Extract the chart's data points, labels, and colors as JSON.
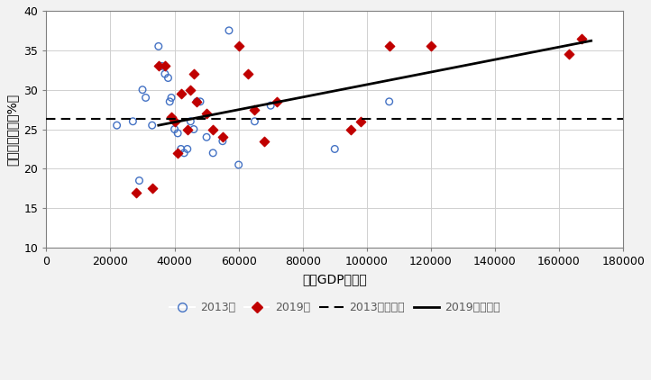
{
  "x2013": [
    22000,
    27000,
    29000,
    30000,
    31000,
    33000,
    35000,
    36000,
    37000,
    38000,
    38500,
    39000,
    40000,
    41000,
    42000,
    43000,
    44000,
    45000,
    46000,
    47000,
    48000,
    50000,
    52000,
    55000,
    57000,
    60000,
    65000,
    70000,
    90000,
    107000
  ],
  "y2013": [
    25.5,
    26.0,
    18.5,
    30.0,
    29.0,
    25.5,
    35.5,
    33.0,
    32.0,
    31.5,
    28.5,
    29.0,
    25.0,
    24.5,
    22.5,
    22.0,
    22.5,
    26.0,
    25.0,
    28.5,
    28.5,
    24.0,
    22.0,
    23.5,
    37.5,
    20.5,
    26.0,
    28.0,
    22.5,
    28.5
  ],
  "x2019": [
    28000,
    33000,
    35000,
    37000,
    39000,
    40000,
    41000,
    42000,
    44000,
    45000,
    46000,
    47000,
    50000,
    52000,
    55000,
    60000,
    63000,
    65000,
    68000,
    72000,
    95000,
    98000,
    107000,
    120000,
    163000,
    167000
  ],
  "y2019": [
    17.0,
    17.5,
    33.0,
    33.0,
    26.5,
    26.0,
    22.0,
    29.5,
    25.0,
    30.0,
    32.0,
    28.5,
    27.0,
    25.0,
    24.0,
    35.5,
    32.0,
    27.5,
    23.5,
    28.5,
    25.0,
    26.0,
    35.5,
    35.5,
    34.5,
    36.5
  ],
  "trend2013_x": [
    0,
    180000
  ],
  "trend2013_y": [
    26.3,
    26.3
  ],
  "trend2019_x": [
    35000,
    170000
  ],
  "trend2019_y": [
    25.5,
    36.2
  ],
  "xlabel": "人均GDP（元）",
  "ylabel": "居民储蓄倾向（%）",
  "xlim": [
    0,
    180000
  ],
  "ylim": [
    10,
    40
  ],
  "xticks": [
    0,
    20000,
    40000,
    60000,
    80000,
    100000,
    120000,
    140000,
    160000,
    180000
  ],
  "yticks": [
    10,
    15,
    20,
    25,
    30,
    35,
    40
  ],
  "grid_color": "#d0d0d0",
  "scatter2013_color": "#4472C4",
  "scatter2019_color": "#C00000",
  "trend2013_color": "#000000",
  "trend2019_color": "#000000",
  "bg_color": "#f2f2f2",
  "plot_bg_color": "#ffffff",
  "legend_labels": [
    "2013年",
    "2019年",
    "2013年趋势线",
    "2019年趋势线"
  ],
  "border_color": "#808080"
}
